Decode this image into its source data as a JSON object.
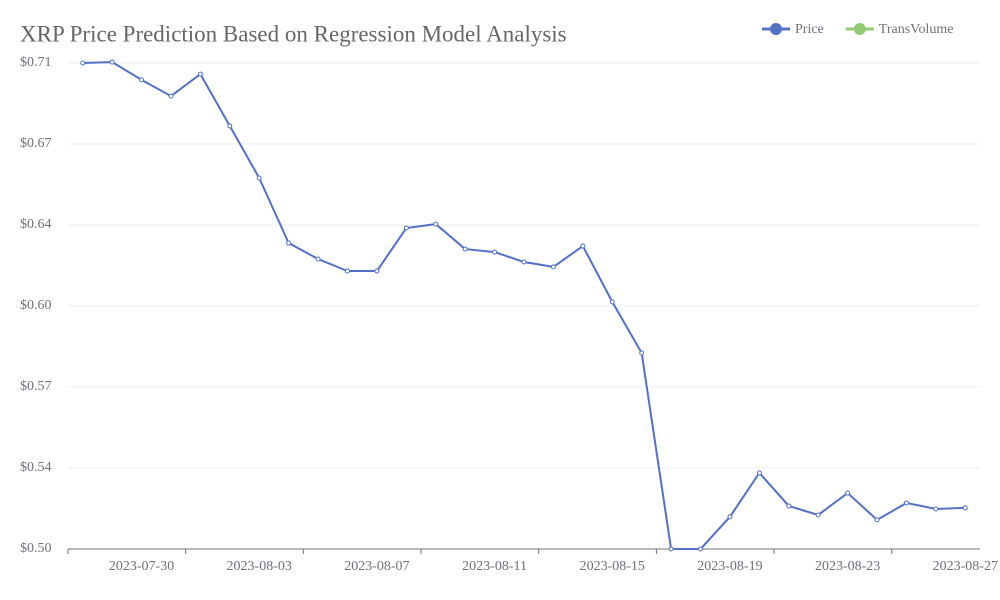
{
  "chart_data": {
    "type": "line",
    "title": "XRP Price Prediction Based on Regression Model Analysis",
    "categories": [
      null,
      null,
      "2023-07-30",
      null,
      null,
      null,
      "2023-08-03",
      null,
      null,
      null,
      "2023-08-07",
      null,
      null,
      null,
      "2023-08-11",
      null,
      null,
      null,
      "2023-08-15",
      null,
      null,
      null,
      "2023-08-19",
      null,
      null,
      null,
      "2023-08-23",
      null,
      null,
      null,
      "2023-08-27"
    ],
    "series": [
      {
        "name": "Price",
        "color": "#5470c6",
        "values": [
          0.71,
          0.7104,
          0.7027,
          0.6957,
          0.7052,
          0.6828,
          0.6603,
          0.6322,
          0.6253,
          0.6201,
          0.6201,
          0.6387,
          0.6404,
          0.6296,
          0.6283,
          0.624,
          0.6219,
          0.6309,
          0.6068,
          0.5847,
          0.5,
          0.5,
          0.5139,
          0.5329,
          0.5186,
          0.5147,
          0.5242,
          0.5126,
          0.5199,
          0.5173,
          0.5178
        ]
      },
      {
        "name": "TransVolume",
        "color": "#91cc75",
        "values": [
          null,
          null,
          null,
          null,
          null,
          null,
          null,
          null,
          null,
          null,
          null,
          null,
          null,
          null,
          null,
          null,
          null,
          null,
          null,
          null,
          null,
          null,
          null,
          null,
          null,
          null,
          null,
          null,
          null,
          null,
          null
        ]
      }
    ],
    "ylim": [
      0.5,
      0.71
    ],
    "yticks": [
      {
        "value": 0.5,
        "label": "$0.50"
      },
      {
        "value": 0.535,
        "label": "$0.54"
      },
      {
        "value": 0.57,
        "label": "$0.57"
      },
      {
        "value": 0.605,
        "label": "$0.60"
      },
      {
        "value": 0.64,
        "label": "$0.64"
      },
      {
        "value": 0.675,
        "label": "$0.67"
      },
      {
        "value": 0.71,
        "label": "$0.71"
      }
    ],
    "grid": true,
    "legend": "top-right"
  }
}
